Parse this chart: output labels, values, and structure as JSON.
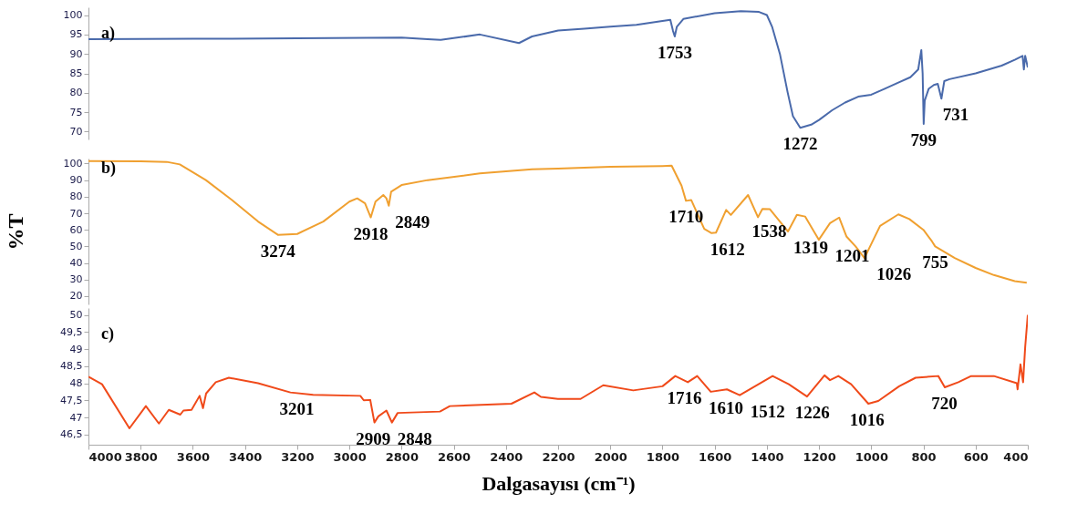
{
  "chart_data": [
    {
      "type": "line",
      "title": "a)",
      "xlim": [
        4000,
        400
      ],
      "ylim": [
        68,
        102
      ],
      "yticks": [
        70,
        75,
        80,
        85,
        90,
        95,
        100
      ],
      "tick_labels": "y",
      "grid": false,
      "marker": "none",
      "line_style": "solid",
      "series": [
        {
          "color": "#4a6aab",
          "x": [
            4000,
            3600,
            3200,
            2800,
            2700,
            2650,
            2500,
            2350,
            2300,
            2200,
            2100,
            2000,
            1900,
            1800,
            1770,
            1760,
            1753,
            1745,
            1720,
            1600,
            1500,
            1430,
            1400,
            1380,
            1350,
            1320,
            1300,
            1272,
            1230,
            1200,
            1150,
            1100,
            1050,
            1000,
            950,
            900,
            850,
            820,
            808,
            803,
            799,
            795,
            780,
            760,
            745,
            731,
            720,
            700,
            600,
            500,
            450,
            420,
            415,
            410,
            400
          ],
          "values": [
            93.8,
            93.9,
            94,
            94.2,
            93.8,
            93.6,
            95,
            92.8,
            94.5,
            96,
            96.5,
            97,
            97.5,
            98.5,
            98.8,
            96,
            94.5,
            97,
            99,
            100.5,
            101,
            100.8,
            100,
            97,
            90,
            80,
            74,
            71,
            71.8,
            73,
            75.5,
            77.5,
            79,
            79.5,
            81,
            82.5,
            84,
            86,
            91,
            85,
            72,
            78,
            81,
            82,
            82.3,
            78.5,
            83,
            83.5,
            85,
            87,
            88.5,
            89.5,
            86,
            89.5,
            86.5
          ]
        }
      ],
      "annotations": [
        {
          "text": "1753",
          "x": 1753,
          "y": 94.5
        },
        {
          "text": "1272",
          "x": 1272,
          "y": 71
        },
        {
          "text": "799",
          "x": 799,
          "y": 72
        },
        {
          "text": "731",
          "x": 731,
          "y": 78.5
        }
      ]
    },
    {
      "type": "line",
      "title": "b)",
      "ylabel": "%T",
      "xlim": [
        4000,
        400
      ],
      "ylim": [
        15,
        103
      ],
      "yticks": [
        20,
        30,
        40,
        50,
        60,
        70,
        80,
        90,
        100
      ],
      "tick_labels": "y",
      "grid": false,
      "marker": "none",
      "line_style": "solid",
      "series": [
        {
          "color": "#f0a030",
          "x": [
            4000,
            3800,
            3700,
            3650,
            3550,
            3450,
            3350,
            3274,
            3200,
            3100,
            3000,
            2970,
            2940,
            2918,
            2900,
            2870,
            2858,
            2849,
            2840,
            2800,
            2700,
            2500,
            2300,
            2200,
            2000,
            1800,
            1765,
            1727,
            1710,
            1690,
            1640,
            1612,
            1595,
            1556,
            1538,
            1472,
            1434,
            1417,
            1389,
            1350,
            1319,
            1285,
            1253,
            1201,
            1158,
            1123,
            1095,
            1060,
            1026,
            966,
            896,
            854,
            800,
            767,
            755,
            680,
            600,
            530,
            450,
            404
          ],
          "values": [
            101.5,
            101.3,
            101,
            99.5,
            90,
            78,
            65,
            57,
            57.5,
            65,
            77,
            79,
            76,
            67.5,
            77,
            81,
            79,
            74.5,
            83,
            87,
            90,
            94,
            96.5,
            97,
            98,
            98.5,
            98.7,
            86.6,
            77.5,
            78,
            60.6,
            58,
            58.3,
            72,
            69,
            81,
            67.6,
            72.6,
            72.5,
            65,
            59,
            69,
            68,
            54,
            64,
            67.4,
            56,
            50,
            43,
            62.4,
            69.3,
            66.5,
            60,
            53,
            50,
            43,
            37,
            32.7,
            29,
            28
          ]
        }
      ],
      "annotations": [
        {
          "text": "3274",
          "x": 3274,
          "y": 57
        },
        {
          "text": "2918",
          "x": 2918,
          "y": 67.5
        },
        {
          "text": "2849",
          "x": 2849,
          "y": 74.5
        },
        {
          "text": "1710",
          "x": 1710,
          "y": 77.5
        },
        {
          "text": "1612",
          "x": 1612,
          "y": 58
        },
        {
          "text": "1538",
          "x": 1538,
          "y": 69
        },
        {
          "text": "1319",
          "x": 1319,
          "y": 59
        },
        {
          "text": "1201",
          "x": 1201,
          "y": 54
        },
        {
          "text": "1026",
          "x": 1026,
          "y": 43
        },
        {
          "text": "755",
          "x": 755,
          "y": 50
        }
      ]
    },
    {
      "type": "line",
      "title": "c)",
      "xlabel": "Dalgasayısı (cm⁻¹)",
      "xlim": [
        4000,
        400
      ],
      "ylim": [
        46.2,
        50.2
      ],
      "xticks": [
        4000,
        3800,
        3600,
        3400,
        3200,
        3000,
        2800,
        2600,
        2400,
        2200,
        2000,
        1800,
        1600,
        1400,
        1200,
        1000,
        800,
        600,
        400
      ],
      "yticks": [
        {
          "value": 46.5,
          "label": "46,5"
        },
        47,
        {
          "value": 47.5,
          "label": "47,5"
        },
        48,
        {
          "value": 48.5,
          "label": "48,5"
        },
        49,
        {
          "value": 49.5,
          "label": "49,5"
        },
        50
      ],
      "grid": false,
      "marker": "none",
      "line_style": "solid",
      "series": [
        {
          "color": "#f04a1a",
          "x": [
            4000,
            3948,
            3843,
            3780,
            3730,
            3692,
            3648,
            3636,
            3605,
            3574,
            3561,
            3549,
            3512,
            3462,
            3350,
            3226,
            3139,
            2958,
            2945,
            2920,
            2904,
            2889,
            2858,
            2837,
            2815,
            2653,
            2615,
            2379,
            2291,
            2266,
            2201,
            2114,
            2027,
            1912,
            1800,
            1751,
            1703,
            1667,
            1615,
            1553,
            1504,
            1378,
            1316,
            1246,
            1179,
            1158,
            1126,
            1077,
            1011,
            973,
            893,
            830,
            743,
            718,
            666,
            617,
            530,
            442,
            439,
            428,
            418,
            410,
            400
          ],
          "values": [
            48.19,
            47.97,
            46.68,
            47.33,
            46.82,
            47.22,
            47.08,
            47.2,
            47.22,
            47.63,
            47.27,
            47.7,
            48.03,
            48.16,
            48.0,
            47.73,
            47.66,
            47.63,
            47.5,
            47.51,
            46.85,
            47.03,
            47.2,
            46.85,
            47.13,
            47.17,
            47.33,
            47.4,
            47.73,
            47.6,
            47.54,
            47.54,
            47.94,
            47.79,
            47.91,
            48.21,
            48.03,
            48.21,
            47.75,
            47.82,
            47.65,
            48.21,
            47.97,
            47.61,
            48.23,
            48.09,
            48.21,
            47.97,
            47.4,
            47.48,
            47.91,
            48.16,
            48.21,
            47.88,
            48.03,
            48.21,
            48.21,
            48.0,
            47.82,
            48.55,
            48.03,
            49.06,
            50
          ]
        }
      ],
      "annotations": [
        {
          "text": "3201",
          "x": 3201,
          "y": 47.73
        },
        {
          "text": "2909",
          "x": 2909,
          "y": 46.85
        },
        {
          "text": "2848",
          "x": 2848,
          "y": 46.85
        },
        {
          "text": "1716",
          "x": 1716,
          "y": 48.05
        },
        {
          "text": "1610",
          "x": 1610,
          "y": 47.75
        },
        {
          "text": "1512",
          "x": 1512,
          "y": 47.65
        },
        {
          "text": "1226",
          "x": 1226,
          "y": 47.61
        },
        {
          "text": "1016",
          "x": 1016,
          "y": 47.4
        },
        {
          "text": "720",
          "x": 720,
          "y": 47.88
        }
      ]
    }
  ]
}
